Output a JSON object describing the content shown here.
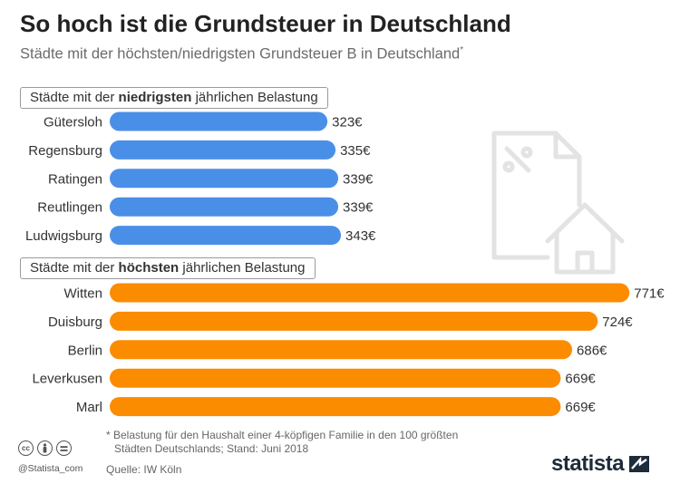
{
  "header": {
    "title": "So hoch ist die Grundsteuer in Deutschland",
    "subtitle": "Städte mit der höchsten/niedrigsten Grundsteuer B in Deutschland",
    "subtitle_mark": "*"
  },
  "colors": {
    "low": "#4a8fe7",
    "high": "#fb8c00",
    "icon": "#e3e3e3"
  },
  "chart_data": [
    {
      "type": "bar",
      "orientation": "horizontal",
      "label_pre": "Städte mit der ",
      "label_bold": "niedrigsten",
      "label_post": " jährlichen Belastung",
      "unit": "€",
      "categories": [
        "Gütersloh",
        "Regensburg",
        "Ratingen",
        "Reutlingen",
        "Ludwigsburg"
      ],
      "values": [
        323,
        335,
        339,
        339,
        343
      ],
      "value_labels": [
        "323€",
        "335€",
        "339€",
        "339€",
        "343€"
      ]
    },
    {
      "type": "bar",
      "orientation": "horizontal",
      "label_pre": "Städte mit der ",
      "label_bold": "höchsten",
      "label_post": " jährlichen Belastung",
      "unit": "€",
      "categories": [
        "Witten",
        "Duisburg",
        "Berlin",
        "Leverkusen",
        "Marl"
      ],
      "values": [
        771,
        724,
        686,
        669,
        669
      ],
      "value_labels": [
        "771€",
        "724€",
        "686€",
        "669€",
        "669€"
      ]
    }
  ],
  "footer": {
    "footnote_line1": "* Belastung für den Haushalt einer 4-köpfigen Familie in den 100 größten",
    "footnote_line2": "Städten Deutschlands; Stand: Juni 2018",
    "source": "Quelle: IW Köln",
    "credit": "@Statista_com",
    "brand": "statista",
    "cc_icons": [
      "cc-icon",
      "attribution-icon",
      "no-derivatives-icon"
    ]
  }
}
